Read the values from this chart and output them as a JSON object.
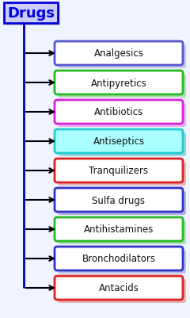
{
  "title": "Drugs",
  "title_bg": "#ccccff",
  "title_text_color": "#0000dd",
  "title_border_color": "#0000dd",
  "background_color": "#f0f4ff",
  "items": [
    {
      "label": "Analgesics",
      "bg": "#ffffff",
      "border": "#5555cc",
      "shadow": "#aaaadd"
    },
    {
      "label": "Antipyretics",
      "bg": "#ffffff",
      "border": "#22bb22",
      "shadow": "#88cc88"
    },
    {
      "label": "Antibiotics",
      "bg": "#ffffff",
      "border": "#dd22dd",
      "shadow": "#dd88dd"
    },
    {
      "label": "Antiseptics",
      "bg": "#aaffff",
      "border": "#22cccc",
      "shadow": "#66bbcc"
    },
    {
      "label": "Tranquilizers",
      "bg": "#ffffff",
      "border": "#dd2222",
      "shadow": "#dd8888"
    },
    {
      "label": "Sulfa drugs",
      "bg": "#ffffff",
      "border": "#3333cc",
      "shadow": "#8888cc"
    },
    {
      "label": "Antihistamines",
      "bg": "#ffffff",
      "border": "#22bb22",
      "shadow": "#88cc88"
    },
    {
      "label": "Bronchodilators",
      "bg": "#ffffff",
      "border": "#3333cc",
      "shadow": "#9999dd"
    },
    {
      "label": "Antacids",
      "bg": "#ffffff",
      "border": "#dd2222",
      "shadow": "#dd8888"
    }
  ],
  "line_color": "#0000aa",
  "arrow_color": "#000000",
  "figsize": [
    2.4,
    4.02
  ],
  "dpi": 100
}
